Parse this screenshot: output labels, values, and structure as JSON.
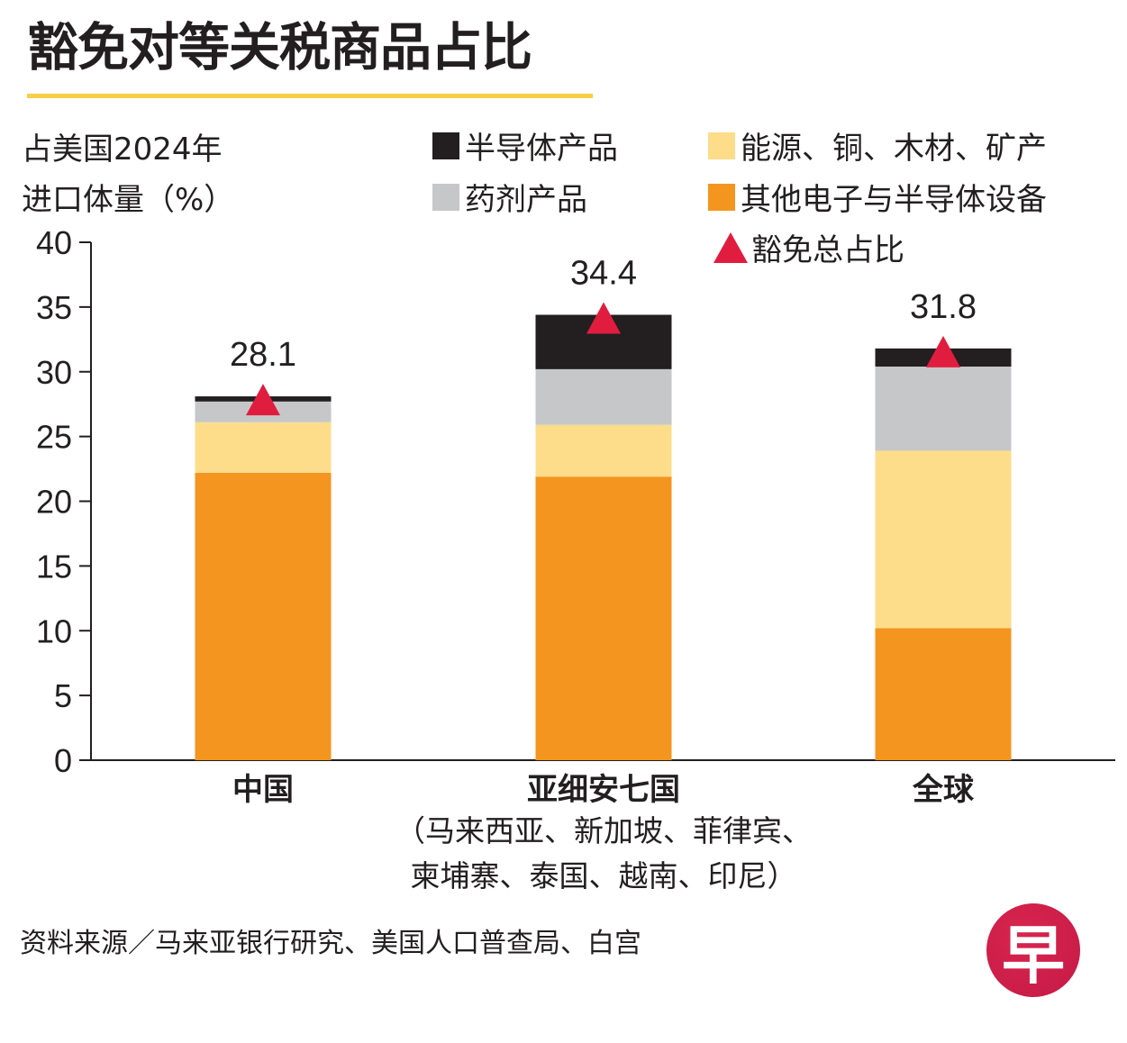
{
  "header": {
    "title": "豁免对等关税商品占比"
  },
  "y_unit_label": [
    "占美国2024年",
    "进口体量（%）"
  ],
  "legend": {
    "items": [
      {
        "label": "半导体产品",
        "color": "#231f20",
        "shape": "square"
      },
      {
        "label": "能源、铜、木材、矿产",
        "color": "#fddd8a",
        "shape": "square"
      },
      {
        "label": "药剂产品",
        "color": "#c6c7c8",
        "shape": "square"
      },
      {
        "label": "其他电子与半导体设备",
        "color": "#f4951f",
        "shape": "square"
      },
      {
        "label": "豁免总占比",
        "color": "#e11d3f",
        "shape": "triangle-icon"
      }
    ]
  },
  "chart_data": {
    "type": "bar",
    "stacked": true,
    "title": "豁免对等关税商品占比",
    "xlabel": "",
    "ylabel": "占美国2024年进口体量（%）",
    "ylim": [
      0,
      40
    ],
    "yticks": [
      0,
      5,
      10,
      15,
      20,
      25,
      30,
      35,
      40
    ],
    "grid": false,
    "legend_position": "top-right",
    "categories": [
      "中国",
      "亚细安七国",
      "全球"
    ],
    "category_sublabels": [
      "",
      "（马来西亚、新加坡、菲律宾、\n柬埔寨、泰国、越南、印尼）",
      ""
    ],
    "series": [
      {
        "name": "其他电子与半导体设备",
        "color": "#f4951f",
        "values": [
          22.2,
          21.9,
          10.2
        ]
      },
      {
        "name": "能源、铜、木材、矿产",
        "color": "#fddd8a",
        "values": [
          3.9,
          4.0,
          13.7
        ]
      },
      {
        "name": "药剂产品",
        "color": "#c6c7c8",
        "values": [
          1.6,
          4.3,
          6.5
        ]
      },
      {
        "name": "半导体产品",
        "color": "#231f20",
        "values": [
          0.4,
          4.2,
          1.4
        ]
      }
    ],
    "totals": {
      "name": "豁免总占比",
      "marker": "triangle",
      "color": "#e11d3f",
      "values": [
        28.1,
        34.4,
        31.8
      ],
      "labels": [
        "28.1",
        "34.4",
        "31.8"
      ]
    }
  },
  "footer": {
    "source": "资料来源／马来亚银行研究、美国人口普查局、白宫",
    "logo_char": "早",
    "logo_color": "#c41a44"
  }
}
